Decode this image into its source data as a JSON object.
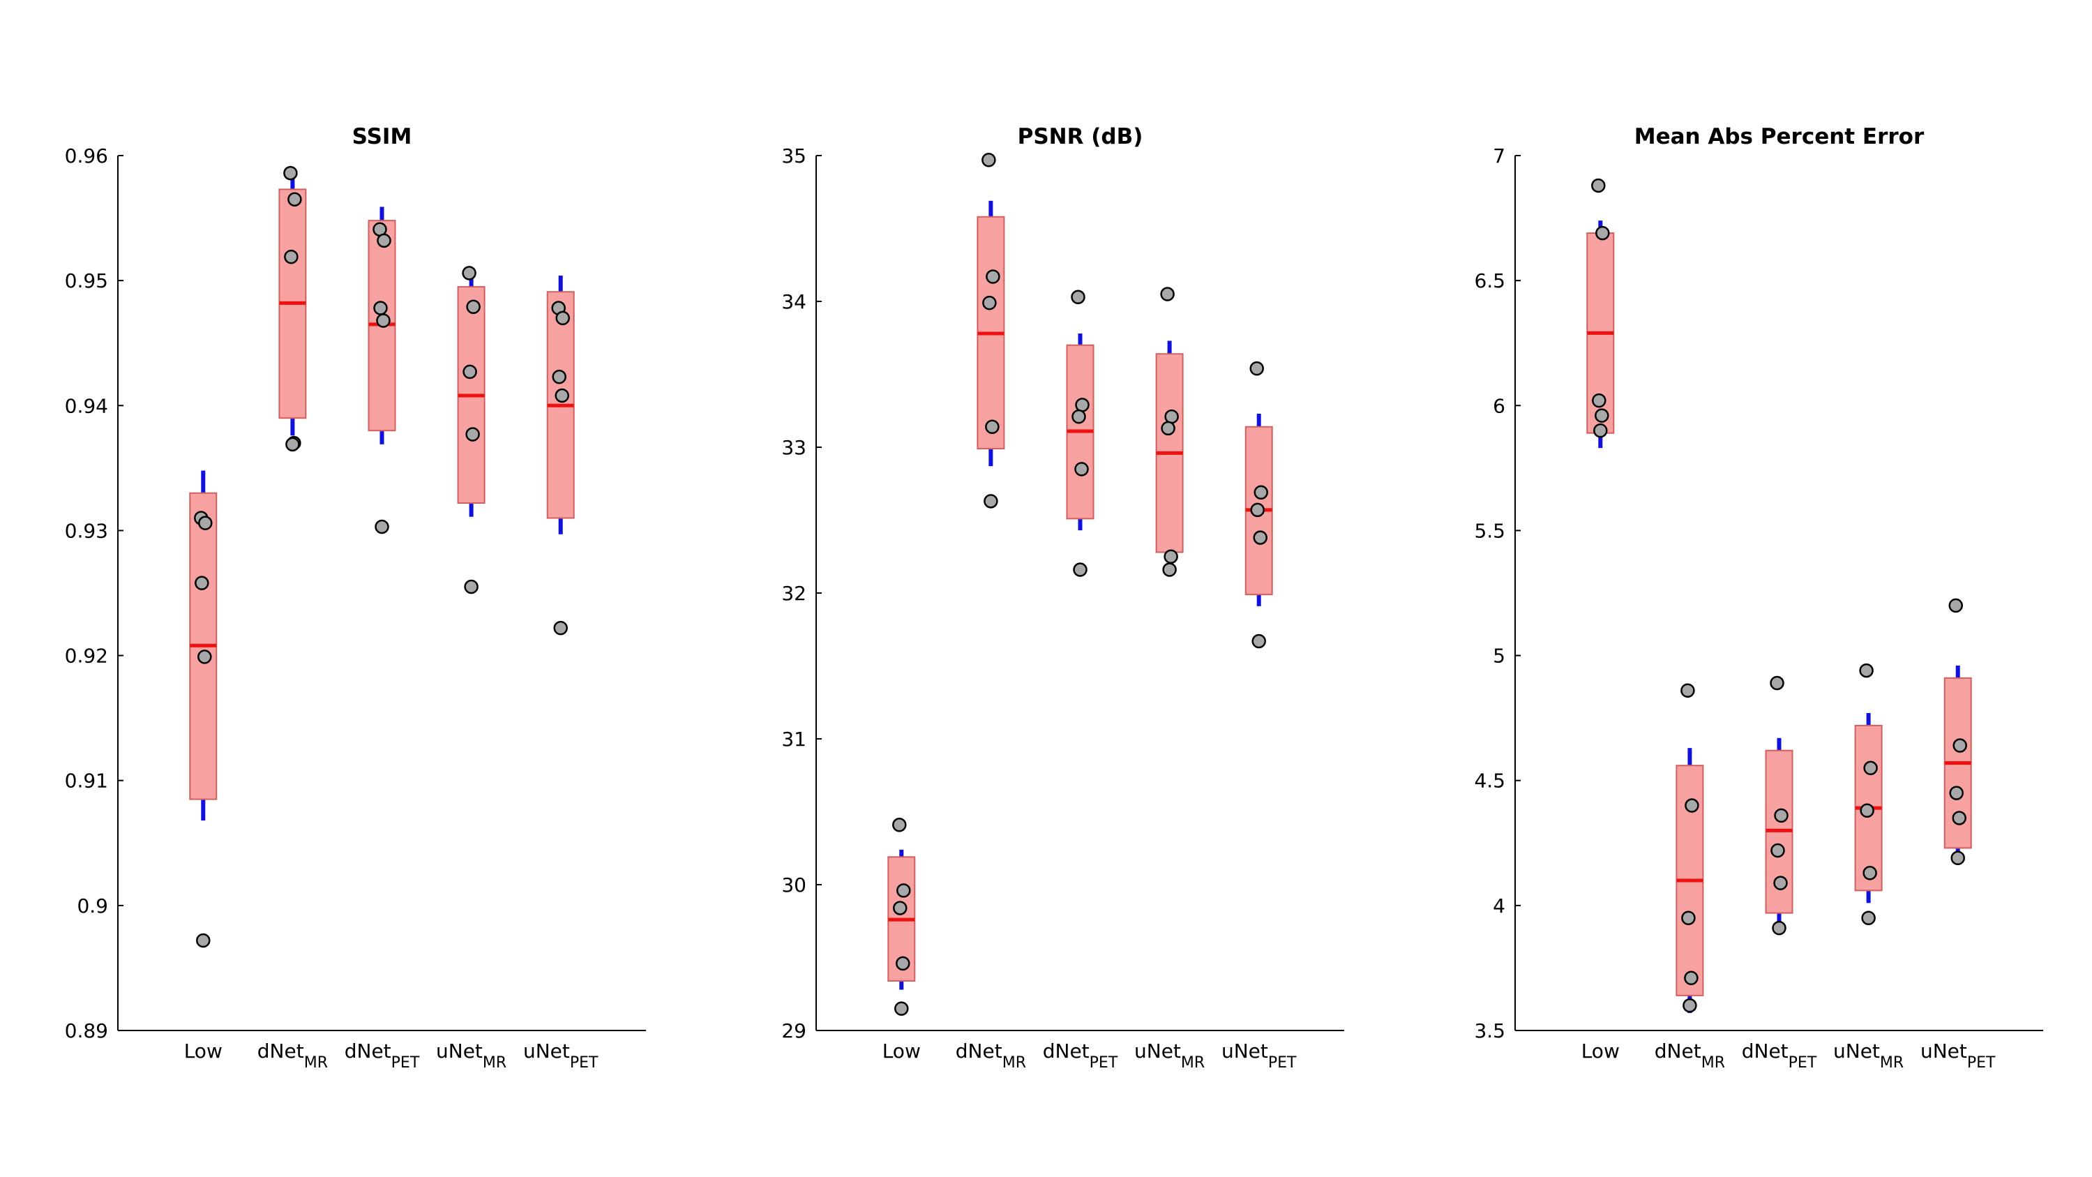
{
  "chart_data": [
    {
      "type": "box",
      "title": "SSIM",
      "categories": [
        {
          "text": "Low"
        },
        {
          "text": "dNet",
          "sub": "MR"
        },
        {
          "text": "dNet",
          "sub": "PET"
        },
        {
          "text": "uNet",
          "sub": "MR"
        },
        {
          "text": "uNet",
          "sub": "PET"
        }
      ],
      "boxes": [
        {
          "low": 0.9085,
          "high": 0.933,
          "center": 0.9208,
          "whisker_low": 0.9068,
          "whisker_high": 0.9348,
          "points": [
            0.931,
            0.9306,
            0.9258,
            0.9199,
            0.8972
          ]
        },
        {
          "low": 0.939,
          "high": 0.9573,
          "center": 0.9482,
          "whisker_low": 0.9376,
          "whisker_high": 0.9584,
          "points": [
            0.9586,
            0.9565,
            0.9519,
            0.937,
            0.9369
          ]
        },
        {
          "low": 0.938,
          "high": 0.9548,
          "center": 0.9465,
          "whisker_low": 0.9369,
          "whisker_high": 0.9559,
          "points": [
            0.9541,
            0.9532,
            0.9478,
            0.9468,
            0.9303
          ]
        },
        {
          "low": 0.9322,
          "high": 0.9495,
          "center": 0.9408,
          "whisker_low": 0.9311,
          "whisker_high": 0.9506,
          "points": [
            0.9506,
            0.9479,
            0.9427,
            0.9377,
            0.9255
          ]
        },
        {
          "low": 0.931,
          "high": 0.9491,
          "center": 0.94,
          "whisker_low": 0.9297,
          "whisker_high": 0.9504,
          "points": [
            0.9478,
            0.947,
            0.9423,
            0.9408,
            0.9222
          ]
        }
      ],
      "ylim": [
        0.89,
        0.96
      ],
      "yticks": [
        0.89,
        0.9,
        0.91,
        0.92,
        0.93,
        0.94,
        0.95,
        0.96
      ],
      "box_color": "#f7a1a1",
      "center_color": "#ee1111",
      "whisker_color": "#1111dd",
      "point_color": "#a8a8a8"
    },
    {
      "type": "box",
      "title": "PSNR (dB)",
      "categories": [
        {
          "text": "Low"
        },
        {
          "text": "dNet",
          "sub": "MR"
        },
        {
          "text": "dNet",
          "sub": "PET"
        },
        {
          "text": "uNet",
          "sub": "MR"
        },
        {
          "text": "uNet",
          "sub": "PET"
        }
      ],
      "boxes": [
        {
          "low": 29.34,
          "high": 30.19,
          "center": 29.76,
          "whisker_low": 29.28,
          "whisker_high": 30.24,
          "points": [
            30.41,
            29.96,
            29.84,
            29.46,
            29.15
          ]
        },
        {
          "low": 32.99,
          "high": 34.58,
          "center": 33.78,
          "whisker_low": 32.87,
          "whisker_high": 34.69,
          "points": [
            34.97,
            34.17,
            33.99,
            33.14,
            32.63
          ]
        },
        {
          "low": 32.51,
          "high": 33.7,
          "center": 33.11,
          "whisker_low": 32.43,
          "whisker_high": 33.78,
          "points": [
            34.03,
            33.29,
            33.21,
            32.85,
            32.16
          ]
        },
        {
          "low": 32.28,
          "high": 33.64,
          "center": 32.96,
          "whisker_low": 32.19,
          "whisker_high": 33.73,
          "points": [
            34.05,
            33.21,
            33.13,
            32.25,
            32.16
          ]
        },
        {
          "low": 31.99,
          "high": 33.14,
          "center": 32.57,
          "whisker_low": 31.91,
          "whisker_high": 33.23,
          "points": [
            33.54,
            32.69,
            32.57,
            32.38,
            31.67
          ]
        }
      ],
      "ylim": [
        29,
        35
      ],
      "yticks": [
        29,
        30,
        31,
        32,
        33,
        34,
        35
      ],
      "box_color": "#f7a1a1",
      "center_color": "#ee1111",
      "whisker_color": "#1111dd",
      "point_color": "#a8a8a8"
    },
    {
      "type": "box",
      "title": "Mean Abs Percent Error",
      "categories": [
        {
          "text": "Low"
        },
        {
          "text": "dNet",
          "sub": "MR"
        },
        {
          "text": "dNet",
          "sub": "PET"
        },
        {
          "text": "uNet",
          "sub": "MR"
        },
        {
          "text": "uNet",
          "sub": "PET"
        }
      ],
      "boxes": [
        {
          "low": 5.89,
          "high": 6.69,
          "center": 6.29,
          "whisker_low": 5.83,
          "whisker_high": 6.74,
          "points": [
            6.88,
            6.69,
            6.02,
            5.96,
            5.9
          ]
        },
        {
          "low": 3.64,
          "high": 4.56,
          "center": 4.1,
          "whisker_low": 3.57,
          "whisker_high": 4.63,
          "points": [
            4.86,
            4.4,
            3.95,
            3.71,
            3.6
          ]
        },
        {
          "low": 3.97,
          "high": 4.62,
          "center": 4.3,
          "whisker_low": 3.92,
          "whisker_high": 4.67,
          "points": [
            4.89,
            4.36,
            4.22,
            4.09,
            3.91
          ]
        },
        {
          "low": 4.06,
          "high": 4.72,
          "center": 4.39,
          "whisker_low": 4.01,
          "whisker_high": 4.77,
          "points": [
            4.94,
            4.55,
            4.38,
            4.13,
            3.95
          ]
        },
        {
          "low": 4.23,
          "high": 4.91,
          "center": 4.57,
          "whisker_low": 4.18,
          "whisker_high": 4.96,
          "points": [
            5.2,
            4.64,
            4.45,
            4.35,
            4.19
          ]
        }
      ],
      "ylim": [
        3.5,
        7
      ],
      "yticks": [
        3.5,
        4,
        4.5,
        5,
        5.5,
        6,
        6.5,
        7
      ],
      "box_color": "#f7a1a1",
      "center_color": "#ee1111",
      "whisker_color": "#1111dd",
      "point_color": "#a8a8a8"
    }
  ]
}
